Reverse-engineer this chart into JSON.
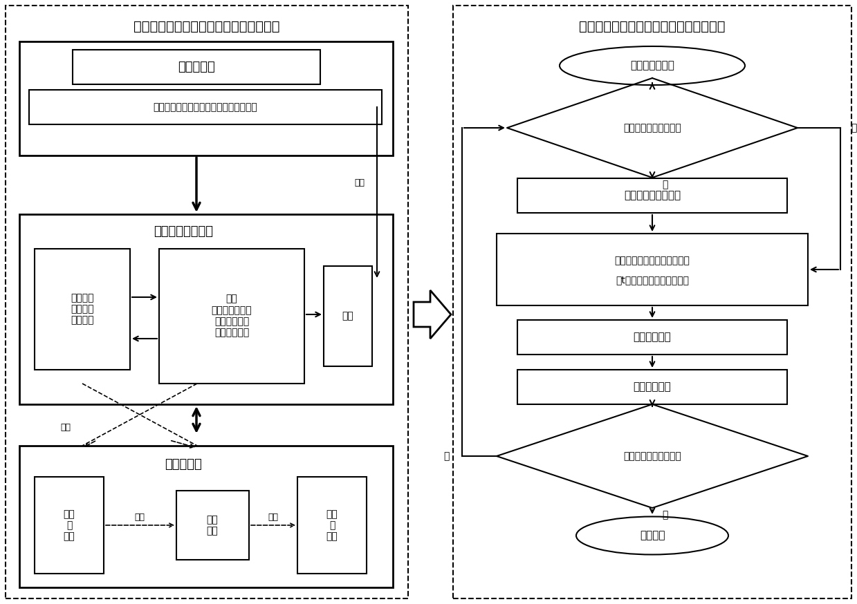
{
  "title_left": "不确定因素作用下流程工业能耗过程建模",
  "title_right": "不确定因素作用下流程工业能耗过程仿真",
  "node_ellipse1": "初始化模型参数",
  "node_diamond1": "划分新的稳态区间否？",
  "node_rect1": "确定当前使能变迁集",
  "node_rect2_line1": "计算不确定因素作用下当前时",
  "node_rect2_line2": "刻t使能设备的瞬时激发速率",
  "node_rect3": "推进仿真时钟",
  "node_rect4": "更新资源标识",
  "node_diamond2": "时间或标识达到目标？",
  "node_ellipse2": "仿真结束",
  "label_yes1": "是",
  "label_no1": "否",
  "label_yes2": "是",
  "label_no2": "否",
  "label_budingsu": "不确定因素",
  "label_sub": "各不确定因素间三角模糊数互补判断矩阵",
  "label_lianxu": "连续性能流、物流",
  "label_ziyuan": "资源仓库\n（物料）\n（能源）",
  "label_shebei": "设备\n（瞬时激发速率\n（活动规则）\n（设备模型）",
  "label_chanpin": "产品",
  "label_lisan": "离散性信息",
  "label_xinxi": "信息\n或\n状态",
  "label_luoji": "逻辑\n操作",
  "label_input": "输入",
  "label_output": "输出",
  "label_jiaohu": "交互",
  "label_gaibianx": "改变",
  "bg_color": "#ffffff"
}
